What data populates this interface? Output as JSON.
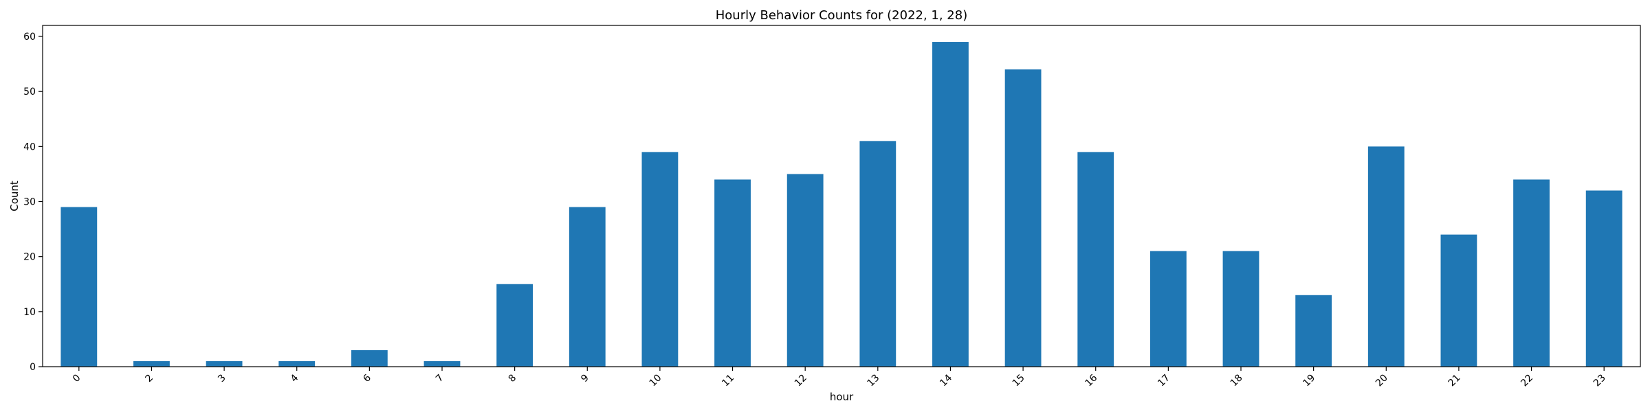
{
  "chart_data": {
    "type": "bar",
    "title": "Hourly Behavior Counts for (2022, 1, 28)",
    "xlabel": "hour",
    "ylabel": "Count",
    "categories": [
      "0",
      "2",
      "3",
      "4",
      "6",
      "7",
      "8",
      "9",
      "10",
      "11",
      "12",
      "13",
      "14",
      "15",
      "16",
      "17",
      "18",
      "19",
      "20",
      "21",
      "22",
      "23"
    ],
    "values": [
      29,
      1,
      1,
      1,
      3,
      1,
      15,
      29,
      39,
      34,
      35,
      41,
      59,
      54,
      39,
      21,
      21,
      13,
      40,
      24,
      34,
      32
    ],
    "ylim": [
      0,
      62
    ],
    "yticks": [
      0,
      10,
      20,
      30,
      40,
      50,
      60
    ],
    "bar_color": "#1f77b4",
    "axis_color": "#000000",
    "grid": false,
    "legend": false
  }
}
